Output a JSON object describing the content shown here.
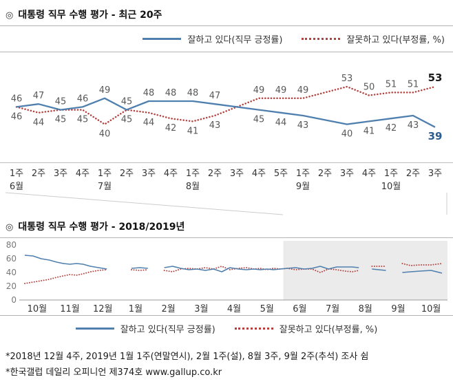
{
  "colors": {
    "positive": "#4e7fae",
    "negative": "#b4413e",
    "positive_strong": "#2c5d8f",
    "negative_strong": "#1a1a1a",
    "label": "#595959",
    "axis_text": "#333333",
    "ytick_text": "#777777",
    "shade": "#ebebeb",
    "rule": "#b3b3b3",
    "connector": "#cccccc",
    "baseline": "#999999"
  },
  "sections": {
    "recent": {
      "marker": "◎",
      "title": "대통령 직무 수행 평가 - 최근 20주"
    },
    "yearly": {
      "marker": "◎",
      "title": "대통령 직무 수행 평가 - 2018/2019년"
    }
  },
  "legend": {
    "positive_label": "잘하고 있다(직무 긍정률)",
    "negative_label": "잘못하고 있다(부정률, %)"
  },
  "footnotes": [
    "*2018년 12월 4주, 2019년 1월 1주(연말연시), 2월 1주(설), 8월 3주, 9월 2주(추석) 조사 쉼",
    "*한국갤럽 데일리 오피니언 제374호 www.gallup.co.kr"
  ],
  "chart_data": [
    {
      "type": "line",
      "title": "대통령 직무 수행 평가 - 최근 20주",
      "ylim": [
        35,
        57
      ],
      "x_week_labels": [
        "1주",
        "2주",
        "3주",
        "4주",
        "1주",
        "2주",
        "3주",
        "4주",
        "1주",
        "2주",
        "3주",
        "4주",
        "5주",
        "1주",
        "2주",
        "3주",
        "4주",
        "1주",
        "2주",
        "3주"
      ],
      "month_labels": [
        {
          "label": "6월",
          "index": 0
        },
        {
          "label": "7월",
          "index": 4
        },
        {
          "label": "8월",
          "index": 8
        },
        {
          "label": "9월",
          "index": 13
        },
        {
          "label": "10월",
          "index": 17
        }
      ],
      "series": [
        {
          "name": "잘하고 있다(직무 긍정률)",
          "line": "solid",
          "color": "#4e7fae",
          "values": [
            46,
            47,
            45,
            46,
            49,
            45,
            48,
            48,
            48,
            47,
            null,
            45,
            44,
            43,
            null,
            40,
            41,
            42,
            43,
            39
          ]
        },
        {
          "name": "잘못하고 있다(부정률, %)",
          "line": "dotted",
          "color": "#b4413e",
          "values": [
            46,
            44,
            45,
            45,
            40,
            45,
            44,
            42,
            41,
            43,
            null,
            49,
            49,
            49,
            null,
            53,
            50,
            51,
            51,
            53
          ]
        }
      ]
    },
    {
      "type": "line",
      "title": "대통령 직무 수행 평가 - 2018/2019년",
      "ylim": [
        0,
        80
      ],
      "yticks": [
        0,
        20,
        40,
        60,
        80
      ],
      "shade_start_month_index": 8,
      "months": [
        {
          "label": "10월",
          "weeks": 4
        },
        {
          "label": "11월",
          "weeks": 5
        },
        {
          "label": "12월",
          "weeks": 4
        },
        {
          "label": "1월",
          "weeks": 4
        },
        {
          "label": "2월",
          "weeks": 4
        },
        {
          "label": "3월",
          "weeks": 4
        },
        {
          "label": "4월",
          "weeks": 4
        },
        {
          "label": "5월",
          "weeks": 5
        },
        {
          "label": "6월",
          "weeks": 4
        },
        {
          "label": "7월",
          "weeks": 4
        },
        {
          "label": "8월",
          "weeks": 5
        },
        {
          "label": "9월",
          "weeks": 4
        },
        {
          "label": "10월",
          "weeks": 3
        }
      ],
      "series": [
        {
          "name": "잘하고 있다(직무 긍정률)",
          "line": "solid",
          "color": "#4e7fae",
          "values": [
            65,
            64,
            60,
            58,
            55,
            53,
            52,
            53,
            52,
            49,
            47,
            45,
            null,
            null,
            46,
            47,
            46,
            null,
            47,
            49,
            46,
            44,
            45,
            43,
            45,
            41,
            47,
            45,
            44,
            45,
            44,
            45,
            44,
            45,
            46,
            47,
            45,
            46,
            49,
            45,
            48,
            48,
            48,
            47,
            null,
            45,
            44,
            43,
            null,
            40,
            41,
            42,
            43,
            39
          ]
        },
        {
          "name": "잘못하고 있다(부정률, %)",
          "line": "dotted",
          "color": "#b4413e",
          "values": [
            24,
            26,
            28,
            30,
            33,
            35,
            37,
            36,
            38,
            41,
            43,
            44,
            null,
            null,
            44,
            43,
            44,
            null,
            43,
            41,
            45,
            46,
            45,
            47,
            45,
            49,
            44,
            46,
            47,
            45,
            46,
            44,
            46,
            45,
            46,
            44,
            45,
            45,
            40,
            45,
            44,
            42,
            41,
            43,
            null,
            49,
            49,
            49,
            null,
            53,
            50,
            51,
            51,
            53
          ]
        }
      ]
    }
  ]
}
